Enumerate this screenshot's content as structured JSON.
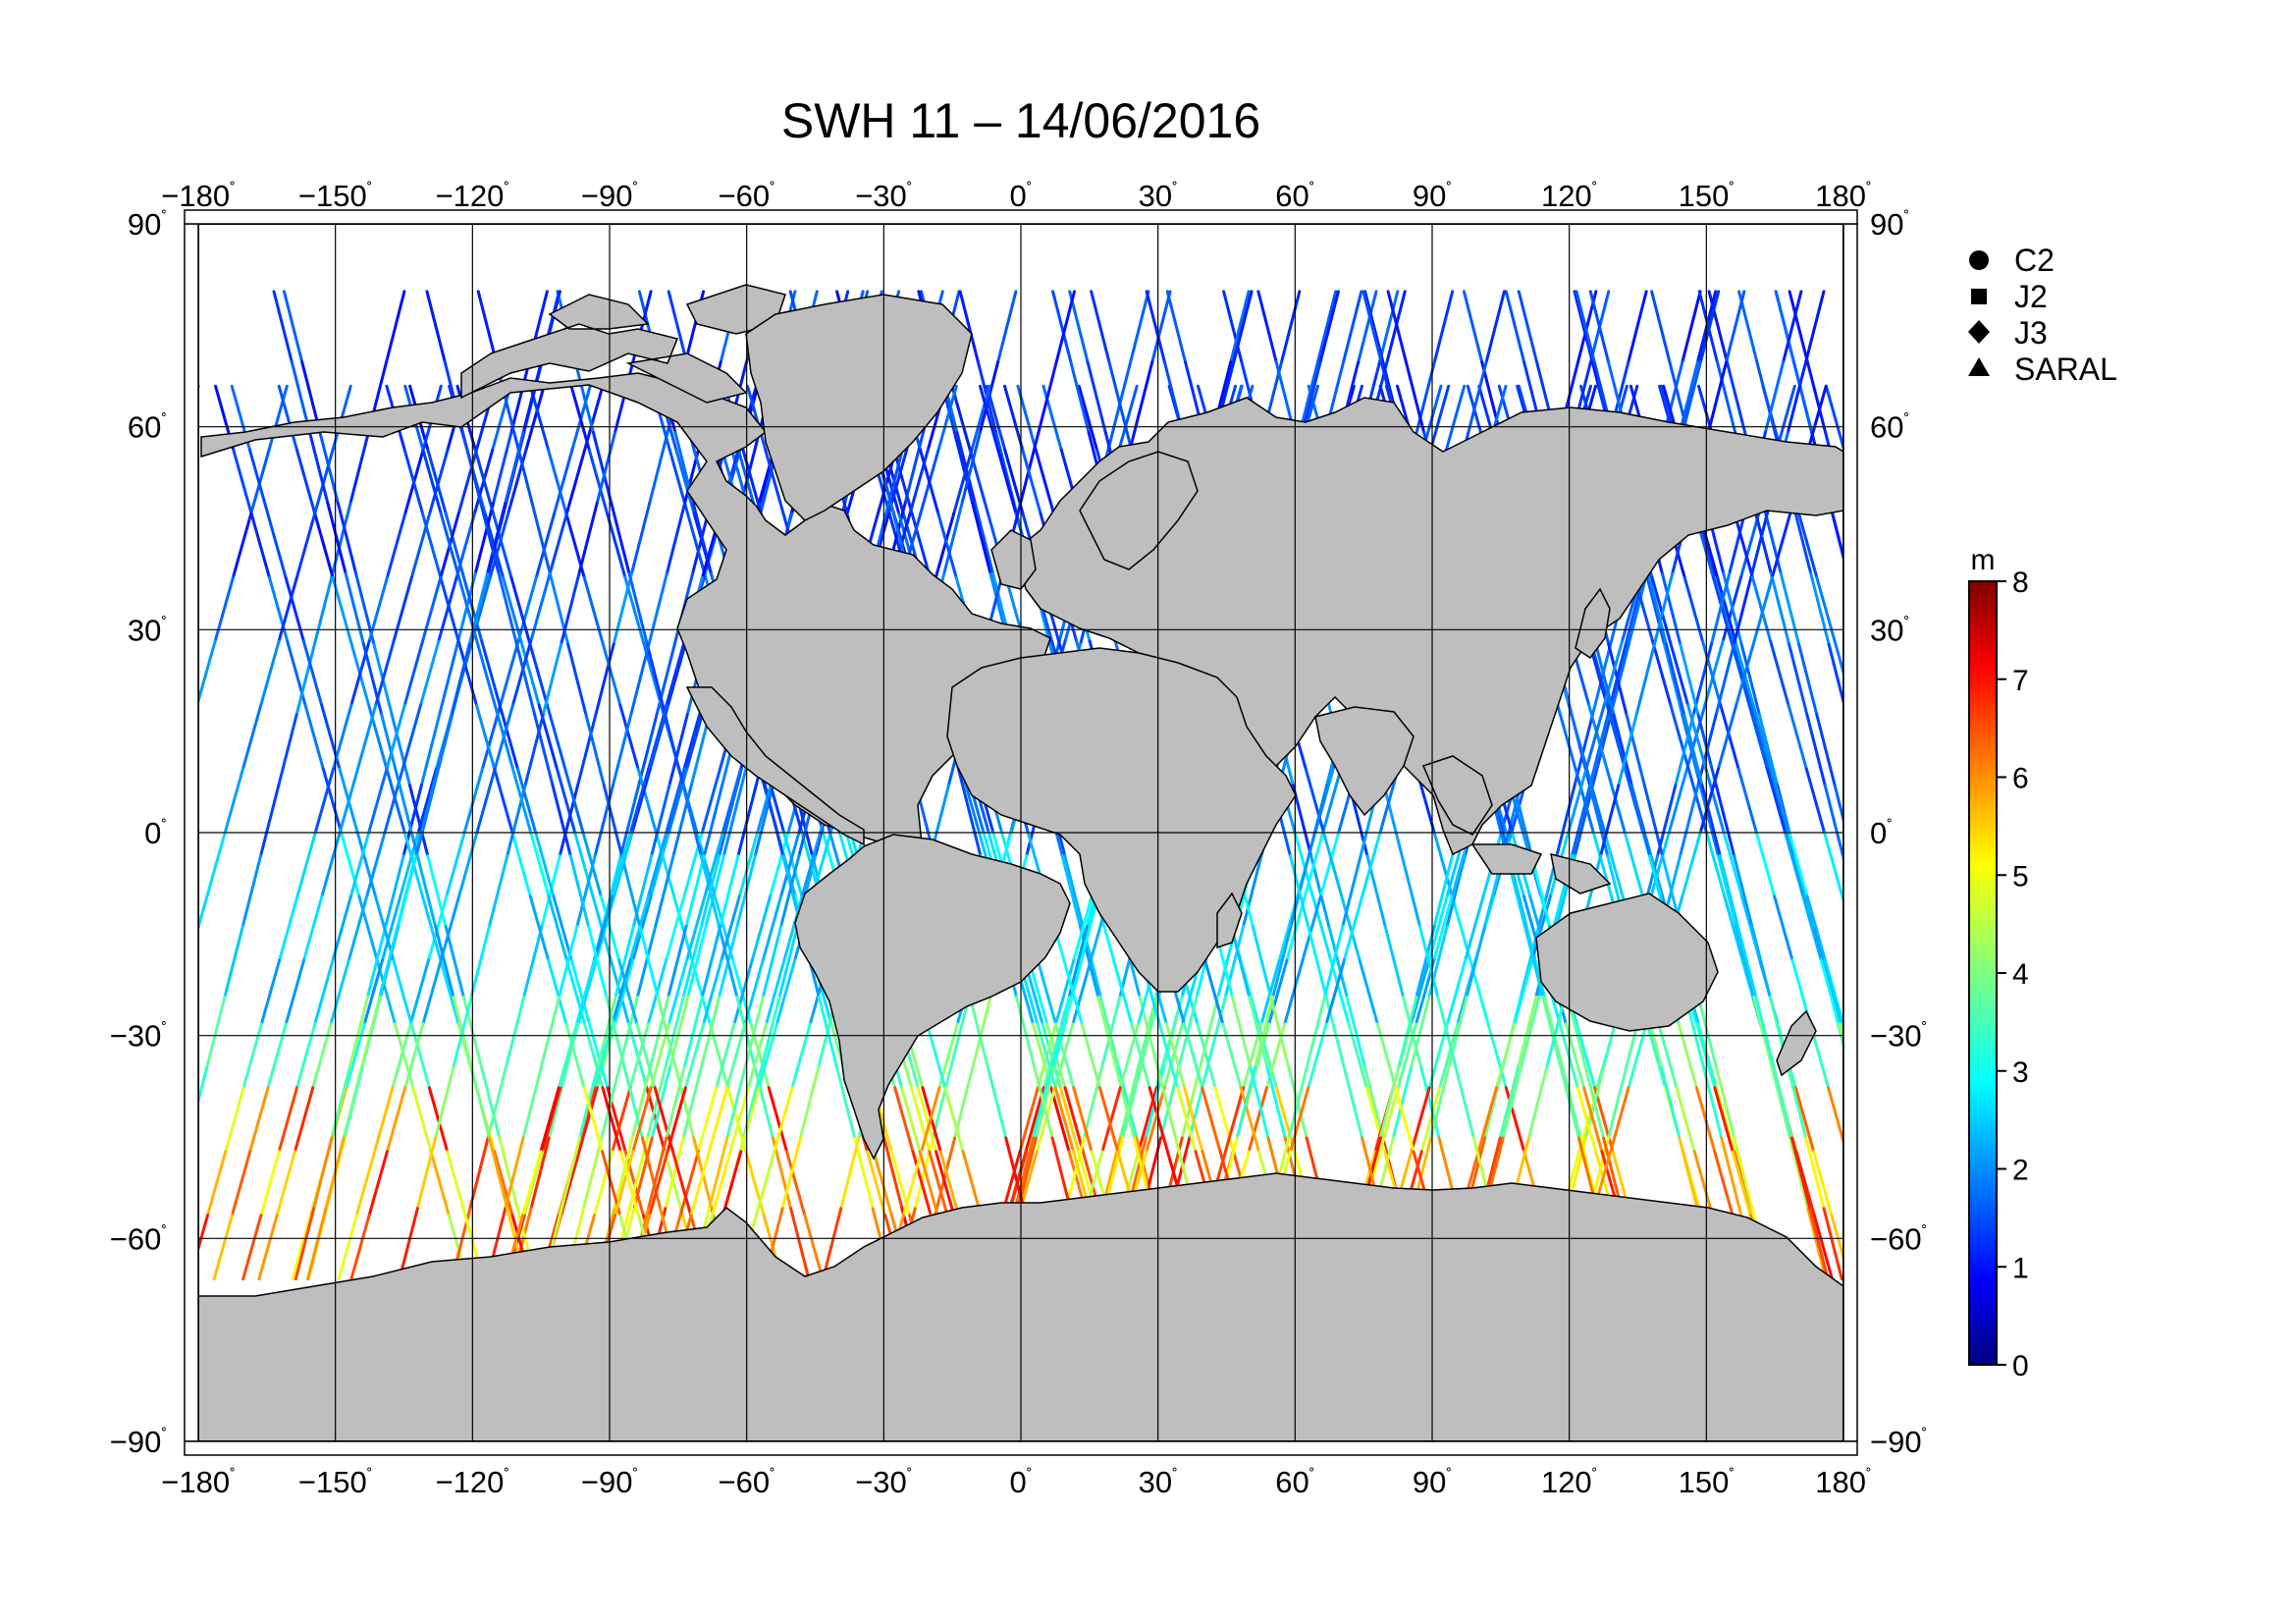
{
  "title": "SWH 11 – 14/06/2016",
  "map": {
    "lon_ticks": [
      "−180",
      "−150",
      "−120",
      "−90",
      "−60",
      "−30",
      "0",
      "30",
      "60",
      "90",
      "120",
      "150",
      "180"
    ],
    "lat_ticks": [
      "90",
      "60",
      "30",
      "0",
      "−30",
      "−60",
      "−90"
    ],
    "degree_symbol": "˚",
    "lon_range": [
      -180,
      180
    ],
    "lat_range": [
      -90,
      90
    ],
    "grid_step_deg": 30,
    "land_color": "#bebebe",
    "ocean_color": "#ffffff"
  },
  "legend": {
    "items": [
      {
        "marker": "circle",
        "label": "C2"
      },
      {
        "marker": "square",
        "label": "J2"
      },
      {
        "marker": "diamond",
        "label": "J3"
      },
      {
        "marker": "triangle",
        "label": "SARAL"
      }
    ]
  },
  "colorbar": {
    "unit": "m",
    "ticks": [
      "0",
      "1",
      "2",
      "3",
      "4",
      "5",
      "6",
      "7",
      "8"
    ],
    "range": [
      0,
      8
    ],
    "colormap": "jet"
  }
}
